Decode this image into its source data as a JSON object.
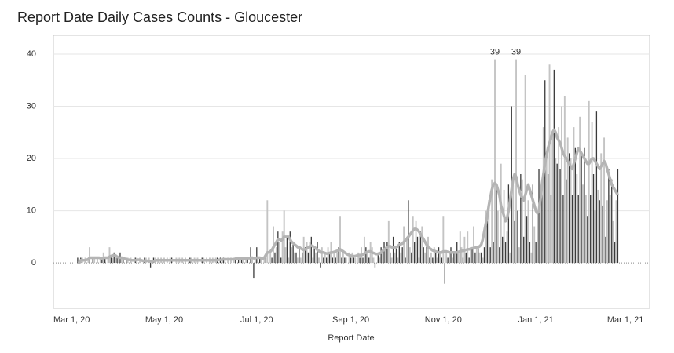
{
  "chart_data": {
    "type": "bar",
    "title": "Report Date Daily Cases Counts - Gloucester",
    "x_label": "Report Date",
    "xlim": [
      "2020-02-18",
      "2021-03-17"
    ],
    "ylim": [
      -8.7,
      43.6
    ],
    "yticks": [
      0,
      10,
      20,
      30,
      40
    ],
    "xticks": [
      {
        "value": "2020-03-01",
        "label": "Mar 1, 20"
      },
      {
        "value": "2020-05-01",
        "label": "May 1, 20"
      },
      {
        "value": "2020-07-01",
        "label": "Jul 1, 20"
      },
      {
        "value": "2020-09-01",
        "label": "Sep 1, 20"
      },
      {
        "value": "2020-11-01",
        "label": "Nov 1, 20"
      },
      {
        "value": "2021-01-01",
        "label": "Jan 1, 21"
      },
      {
        "value": "2021-03-01",
        "label": "Mar 1, 21"
      }
    ],
    "grid": true,
    "x": [
      "2020-03-05",
      "2020-03-06",
      "2020-03-07",
      "2020-03-08",
      "2020-03-09",
      "2020-03-10",
      "2020-03-11",
      "2020-03-12",
      "2020-03-13",
      "2020-03-14",
      "2020-03-15",
      "2020-03-16",
      "2020-03-17",
      "2020-03-18",
      "2020-03-19",
      "2020-03-20",
      "2020-03-21",
      "2020-03-22",
      "2020-03-23",
      "2020-03-24",
      "2020-03-25",
      "2020-03-26",
      "2020-03-27",
      "2020-03-28",
      "2020-03-29",
      "2020-03-30",
      "2020-03-31",
      "2020-04-01",
      "2020-04-02",
      "2020-04-03",
      "2020-04-04",
      "2020-04-05",
      "2020-04-06",
      "2020-04-07",
      "2020-04-08",
      "2020-04-09",
      "2020-04-10",
      "2020-04-11",
      "2020-04-12",
      "2020-04-13",
      "2020-04-14",
      "2020-04-15",
      "2020-04-16",
      "2020-04-17",
      "2020-04-18",
      "2020-04-19",
      "2020-04-20",
      "2020-04-21",
      "2020-04-22",
      "2020-04-23",
      "2020-04-24",
      "2020-04-25",
      "2020-04-26",
      "2020-04-27",
      "2020-04-28",
      "2020-04-29",
      "2020-04-30",
      "2020-05-01",
      "2020-05-02",
      "2020-05-03",
      "2020-05-04",
      "2020-05-05",
      "2020-05-06",
      "2020-05-07",
      "2020-05-08",
      "2020-05-09",
      "2020-05-10",
      "2020-05-11",
      "2020-05-12",
      "2020-05-13",
      "2020-05-14",
      "2020-05-15",
      "2020-05-16",
      "2020-05-17",
      "2020-05-18",
      "2020-05-19",
      "2020-05-20",
      "2020-05-21",
      "2020-05-22",
      "2020-05-23",
      "2020-05-24",
      "2020-05-25",
      "2020-05-26",
      "2020-05-27",
      "2020-05-28",
      "2020-05-29",
      "2020-05-30",
      "2020-05-31",
      "2020-06-01",
      "2020-06-02",
      "2020-06-03",
      "2020-06-04",
      "2020-06-05",
      "2020-06-06",
      "2020-06-07",
      "2020-06-08",
      "2020-06-09",
      "2020-06-10",
      "2020-06-11",
      "2020-06-12",
      "2020-06-13",
      "2020-06-14",
      "2020-06-15",
      "2020-06-16",
      "2020-06-17",
      "2020-06-18",
      "2020-06-19",
      "2020-06-20",
      "2020-06-21",
      "2020-06-22",
      "2020-06-23",
      "2020-06-24",
      "2020-06-25",
      "2020-06-26",
      "2020-06-27",
      "2020-06-28",
      "2020-06-29",
      "2020-06-30",
      "2020-07-01",
      "2020-07-02",
      "2020-07-03",
      "2020-07-04",
      "2020-07-05",
      "2020-07-06",
      "2020-07-07",
      "2020-07-08",
      "2020-07-09",
      "2020-07-10",
      "2020-07-11",
      "2020-07-12",
      "2020-07-13",
      "2020-07-14",
      "2020-07-15",
      "2020-07-16",
      "2020-07-17",
      "2020-07-18",
      "2020-07-19",
      "2020-07-20",
      "2020-07-21",
      "2020-07-22",
      "2020-07-23",
      "2020-07-24",
      "2020-07-25",
      "2020-07-26",
      "2020-07-27",
      "2020-07-28",
      "2020-07-29",
      "2020-07-30",
      "2020-07-31",
      "2020-08-01",
      "2020-08-02",
      "2020-08-03",
      "2020-08-04",
      "2020-08-05",
      "2020-08-06",
      "2020-08-07",
      "2020-08-08",
      "2020-08-09",
      "2020-08-10",
      "2020-08-11",
      "2020-08-12",
      "2020-08-13",
      "2020-08-14",
      "2020-08-15",
      "2020-08-16",
      "2020-08-17",
      "2020-08-18",
      "2020-08-19",
      "2020-08-20",
      "2020-08-21",
      "2020-08-22",
      "2020-08-23",
      "2020-08-24",
      "2020-08-25",
      "2020-08-26",
      "2020-08-27",
      "2020-08-28",
      "2020-08-29",
      "2020-08-30",
      "2020-08-31",
      "2020-09-01",
      "2020-09-02",
      "2020-09-03",
      "2020-09-04",
      "2020-09-05",
      "2020-09-06",
      "2020-09-07",
      "2020-09-08",
      "2020-09-09",
      "2020-09-10",
      "2020-09-11",
      "2020-09-12",
      "2020-09-13",
      "2020-09-14",
      "2020-09-15",
      "2020-09-16",
      "2020-09-17",
      "2020-09-18",
      "2020-09-19",
      "2020-09-20",
      "2020-09-21",
      "2020-09-22",
      "2020-09-23",
      "2020-09-24",
      "2020-09-25",
      "2020-09-26",
      "2020-09-27",
      "2020-09-28",
      "2020-09-29",
      "2020-09-30",
      "2020-10-01",
      "2020-10-02",
      "2020-10-03",
      "2020-10-04",
      "2020-10-05",
      "2020-10-06",
      "2020-10-07",
      "2020-10-08",
      "2020-10-09",
      "2020-10-10",
      "2020-10-11",
      "2020-10-12",
      "2020-10-13",
      "2020-10-14",
      "2020-10-15",
      "2020-10-16",
      "2020-10-17",
      "2020-10-18",
      "2020-10-19",
      "2020-10-20",
      "2020-10-21",
      "2020-10-22",
      "2020-10-23",
      "2020-10-24",
      "2020-10-25",
      "2020-10-26",
      "2020-10-27",
      "2020-10-28",
      "2020-10-29",
      "2020-10-30",
      "2020-10-31",
      "2020-11-01",
      "2020-11-02",
      "2020-11-03",
      "2020-11-04",
      "2020-11-05",
      "2020-11-06",
      "2020-11-07",
      "2020-11-08",
      "2020-11-09",
      "2020-11-10",
      "2020-11-11",
      "2020-11-12",
      "2020-11-13",
      "2020-11-14",
      "2020-11-15",
      "2020-11-16",
      "2020-11-17",
      "2020-11-18",
      "2020-11-19",
      "2020-11-20",
      "2020-11-21",
      "2020-11-22",
      "2020-11-23",
      "2020-11-24",
      "2020-11-25",
      "2020-11-26",
      "2020-11-27",
      "2020-11-28",
      "2020-11-29",
      "2020-11-30",
      "2020-12-01",
      "2020-12-02",
      "2020-12-03",
      "2020-12-04",
      "2020-12-05",
      "2020-12-06",
      "2020-12-07",
      "2020-12-08",
      "2020-12-09",
      "2020-12-10",
      "2020-12-11",
      "2020-12-12",
      "2020-12-13",
      "2020-12-14",
      "2020-12-15",
      "2020-12-16",
      "2020-12-17",
      "2020-12-18",
      "2020-12-19",
      "2020-12-20",
      "2020-12-21",
      "2020-12-22",
      "2020-12-23",
      "2020-12-24",
      "2020-12-25",
      "2020-12-26",
      "2020-12-27",
      "2020-12-28",
      "2020-12-29",
      "2020-12-30",
      "2020-12-31",
      "2021-01-01",
      "2021-01-02",
      "2021-01-03",
      "2021-01-04",
      "2021-01-05",
      "2021-01-06",
      "2021-01-07",
      "2021-01-08",
      "2021-01-09",
      "2021-01-10",
      "2021-01-11",
      "2021-01-12",
      "2021-01-13",
      "2021-01-14",
      "2021-01-15",
      "2021-01-16",
      "2021-01-17",
      "2021-01-18",
      "2021-01-19",
      "2021-01-20",
      "2021-01-21",
      "2021-01-22",
      "2021-01-23",
      "2021-01-24",
      "2021-01-25",
      "2021-01-26",
      "2021-01-27",
      "2021-01-28",
      "2021-01-29",
      "2021-01-30",
      "2021-01-31",
      "2021-02-01",
      "2021-02-02",
      "2021-02-03",
      "2021-02-04",
      "2021-02-05",
      "2021-02-06",
      "2021-02-07",
      "2021-02-08",
      "2021-02-09",
      "2021-02-10",
      "2021-02-11",
      "2021-02-12",
      "2021-02-13",
      "2021-02-14",
      "2021-02-15",
      "2021-02-16",
      "2021-02-17",
      "2021-02-18",
      "2021-02-19",
      "2021-02-20",
      "2021-02-21",
      "2021-02-22",
      "2021-02-23",
      "2021-02-24"
    ],
    "bars": {
      "colors": [
        "#3a3a3a",
        "#c4c4c4"
      ],
      "values": [
        1,
        0,
        1,
        1,
        0,
        1,
        0,
        1,
        3,
        0,
        1,
        1,
        0,
        1,
        0,
        1,
        1,
        2,
        1,
        0,
        1,
        3,
        1,
        1,
        2,
        1,
        1,
        1,
        2,
        1,
        1,
        0,
        1,
        1,
        0,
        1,
        0,
        0,
        1,
        1,
        0,
        1,
        0,
        0,
        1,
        1,
        0,
        1,
        -1,
        0,
        1,
        1,
        0,
        1,
        0,
        1,
        0,
        1,
        0,
        1,
        0,
        1,
        1,
        0,
        0,
        1,
        0,
        1,
        0,
        1,
        0,
        1,
        0,
        0,
        1,
        1,
        0,
        1,
        0,
        1,
        0,
        0,
        1,
        1,
        0,
        1,
        0,
        1,
        0,
        1,
        0,
        1,
        1,
        0,
        1,
        0,
        1,
        1,
        0,
        1,
        0,
        1,
        0,
        1,
        1,
        0,
        1,
        0,
        1,
        1,
        0,
        1,
        1,
        0,
        3,
        1,
        -3,
        1,
        3,
        0,
        1,
        1,
        0,
        1,
        1,
        12,
        0,
        2,
        1,
        7,
        2,
        3,
        6,
        4,
        1,
        6,
        10,
        3,
        5,
        1,
        6,
        3,
        4,
        2,
        2,
        1,
        3,
        1,
        2,
        5,
        3,
        4,
        2,
        4,
        5,
        1,
        3,
        2,
        4,
        1,
        -1,
        3,
        1,
        2,
        1,
        3,
        2,
        4,
        1,
        2,
        1,
        2,
        3,
        9,
        1,
        2,
        1,
        1,
        0,
        2,
        1,
        2,
        1,
        1,
        0,
        2,
        1,
        3,
        1,
        5,
        3,
        2,
        1,
        4,
        3,
        1,
        -1,
        0,
        2,
        1,
        3,
        2,
        4,
        3,
        4,
        8,
        2,
        1,
        5,
        2,
        3,
        1,
        4,
        2,
        3,
        7,
        1,
        5,
        12,
        3,
        2,
        9,
        4,
        8,
        5,
        1,
        6,
        7,
        3,
        2,
        4,
        5,
        1,
        2,
        1,
        3,
        2,
        1,
        3,
        2,
        1,
        9,
        -4,
        2,
        1,
        2,
        3,
        1,
        2,
        2,
        4,
        2,
        6,
        3,
        1,
        5,
        2,
        6,
        1,
        3,
        3,
        7,
        2,
        3,
        3,
        2,
        2,
        1,
        3,
        10,
        8,
        12,
        3,
        16,
        4,
        39,
        15,
        10,
        3,
        19,
        5,
        14,
        4,
        6,
        15,
        2,
        30,
        15,
        8,
        39,
        10,
        3,
        17,
        16,
        5,
        36,
        9,
        12,
        4,
        2,
        15,
        7,
        4,
        10,
        18,
        12,
        16,
        26,
        35,
        21,
        17,
        38,
        13,
        25,
        37,
        20,
        19,
        26,
        18,
        30,
        13,
        32,
        16,
        24,
        21,
        20,
        13,
        26,
        22,
        17,
        13,
        28,
        21,
        15,
        22,
        13,
        9,
        31,
        13,
        27,
        17,
        10,
        29,
        14,
        12,
        21,
        11,
        24,
        5,
        12,
        18,
        13,
        16,
        8,
        4,
        12,
        18
      ]
    },
    "average": {
      "color": "#b4b4b4",
      "values": [
        0,
        0,
        0.5,
        0.5,
        0.5,
        0.5,
        0.6,
        0.7,
        1,
        1,
        1,
        1,
        1,
        1,
        1,
        0.9,
        0.8,
        0.9,
        1,
        1,
        1,
        1.2,
        1.3,
        1.4,
        1.5,
        1.4,
        1.2,
        1,
        1,
        1,
        0.9,
        0.8,
        0.7,
        0.6,
        0.6,
        0.5,
        0.5,
        0.5,
        0.5,
        0.6,
        0.6,
        0.6,
        0.5,
        0.4,
        0.4,
        0.4,
        0.4,
        0.3,
        0.3,
        0.3,
        0.3,
        0.4,
        0.5,
        0.5,
        0.5,
        0.5,
        0.5,
        0.5,
        0.5,
        0.5,
        0.5,
        0.5,
        0.5,
        0.5,
        0.5,
        0.5,
        0.5,
        0.5,
        0.5,
        0.5,
        0.5,
        0.5,
        0.5,
        0.5,
        0.5,
        0.5,
        0.5,
        0.5,
        0.5,
        0.5,
        0.5,
        0.5,
        0.5,
        0.5,
        0.5,
        0.5,
        0.5,
        0.5,
        0.5,
        0.5,
        0.5,
        0.5,
        0.5,
        0.6,
        0.6,
        0.6,
        0.7,
        0.7,
        0.7,
        0.7,
        0.7,
        0.7,
        0.7,
        0.7,
        0.8,
        0.8,
        0.8,
        0.8,
        0.8,
        0.8,
        0.8,
        0.9,
        0.9,
        0.9,
        1,
        1,
        0.9,
        0.9,
        1,
        1,
        1,
        0.9,
        0.8,
        1,
        1.5,
        2,
        2,
        2.2,
        2.5,
        3,
        3.5,
        4,
        4.5,
        4.5,
        4.3,
        4.5,
        5,
        5,
        5,
        5,
        4.5,
        4,
        3.8,
        3.5,
        3.3,
        3,
        3,
        2.8,
        2.6,
        2.5,
        2.6,
        2.8,
        3,
        3.2,
        3.3,
        3.2,
        3,
        2.8,
        2.5,
        2.3,
        2,
        2,
        2,
        1.9,
        1.8,
        1.8,
        1.9,
        2,
        2,
        2.1,
        2.2,
        2.3,
        2.5,
        2.6,
        2.4,
        2.2,
        2,
        1.8,
        1.6,
        1.5,
        1.4,
        1.3,
        1.3,
        1.3,
        1.4,
        1.5,
        1.5,
        1.5,
        1.6,
        1.8,
        2,
        2.1,
        2.2,
        2.2,
        2,
        1.9,
        1.8,
        1.7,
        1.7,
        1.8,
        2,
        2.3,
        2.5,
        2.8,
        3,
        3.2,
        3.2,
        3,
        3,
        3,
        3,
        3.2,
        3.5,
        3.6,
        3.7,
        4,
        4.3,
        4.6,
        5,
        5.4,
        5.8,
        6.2,
        6.5,
        6.5,
        6.3,
        6,
        5.5,
        5,
        4.5,
        4,
        3.5,
        3,
        2.8,
        2.6,
        2.4,
        2.3,
        2.2,
        2.1,
        2,
        2,
        2,
        2.2,
        2.2,
        2.2,
        2.1,
        2,
        2,
        2,
        2,
        2,
        2,
        2.1,
        2.2,
        2.3,
        2.3,
        2.4,
        2.5,
        2.6,
        2.6,
        2.7,
        2.8,
        2.8,
        2.9,
        3,
        3,
        3.2,
        3.5,
        4.5,
        6,
        7.5,
        9,
        11,
        12.5,
        14,
        15,
        15.3,
        15,
        14,
        13,
        11,
        10,
        9,
        8,
        8.5,
        10,
        12,
        14,
        16,
        17,
        16.5,
        15,
        14,
        13,
        12.5,
        12,
        13,
        14,
        15,
        14,
        13,
        12,
        11,
        10,
        9.5,
        10,
        12,
        15,
        17,
        19,
        20.5,
        22,
        23,
        24,
        25,
        25.5,
        25,
        24,
        23.5,
        23,
        22,
        21,
        20.5,
        20,
        19.5,
        19,
        18.5,
        18,
        19,
        20,
        21,
        22,
        21.5,
        21,
        20.5,
        20,
        19.5,
        19,
        19,
        19.5,
        20,
        20,
        19.5,
        19,
        18.5,
        18,
        18.5,
        19,
        19.5,
        19,
        18,
        17,
        16,
        15,
        14.5,
        14,
        13.5,
        13
      ]
    }
  }
}
